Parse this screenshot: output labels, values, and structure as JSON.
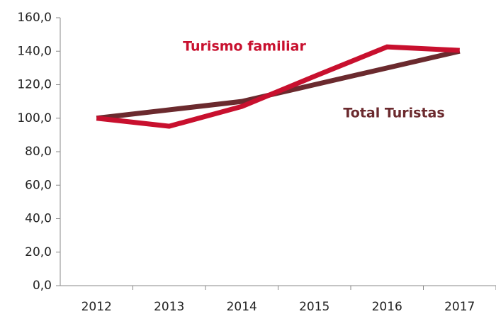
{
  "chart_data": {
    "type": "line",
    "categories": [
      "2012",
      "2013",
      "2014",
      "2015",
      "2016",
      "2017"
    ],
    "series": [
      {
        "name": "Total Turistas",
        "color": "#6b2a2e",
        "values": [
          100,
          105,
          110,
          120,
          130,
          140
        ]
      },
      {
        "name": "Turismo familiar",
        "color": "#c8102e",
        "values": [
          100,
          95.2,
          107,
          125,
          142.6,
          140.5
        ]
      }
    ],
    "ylim": [
      0,
      160
    ],
    "yticks": [
      {
        "value": 0,
        "label": "0,0"
      },
      {
        "value": 20,
        "label": "20,0"
      },
      {
        "value": 40,
        "label": "40,0"
      },
      {
        "value": 60,
        "label": "60,0"
      },
      {
        "value": 80,
        "label": "80,0"
      },
      {
        "value": 100,
        "label": "100,0"
      },
      {
        "value": 120,
        "label": "120,0"
      },
      {
        "value": 140,
        "label": "140,0"
      },
      {
        "value": 160,
        "label": "160,0"
      }
    ],
    "grid": false
  }
}
